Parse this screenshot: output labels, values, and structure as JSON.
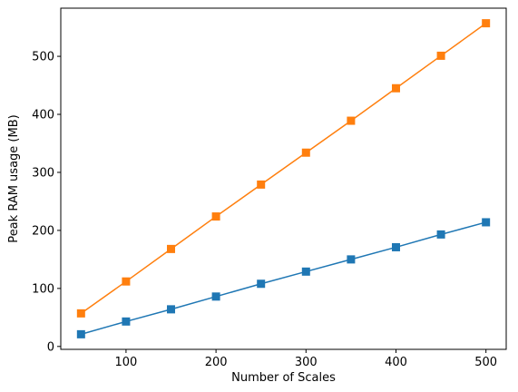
{
  "chart_data": {
    "type": "line",
    "title": "",
    "xlabel": "Number of Scales",
    "ylabel": "Peak RAM usage (MB)",
    "xlim": [
      27.5,
      522.5
    ],
    "ylim": [
      -5,
      583
    ],
    "grid": false,
    "marker": "square",
    "x": [
      50,
      100,
      150,
      200,
      250,
      300,
      350,
      400,
      450,
      500
    ],
    "series": [
      {
        "color": "#ff7f0e",
        "values": [
          57,
          112,
          168,
          224,
          279,
          334,
          389,
          445,
          501,
          557
        ]
      },
      {
        "color": "#1f77b4",
        "values": [
          21,
          43,
          64,
          86,
          108,
          129,
          150,
          171,
          193,
          214
        ]
      }
    ],
    "xticks": [
      100,
      200,
      300,
      400,
      500
    ],
    "yticks": [
      0,
      100,
      200,
      300,
      400,
      500
    ]
  }
}
